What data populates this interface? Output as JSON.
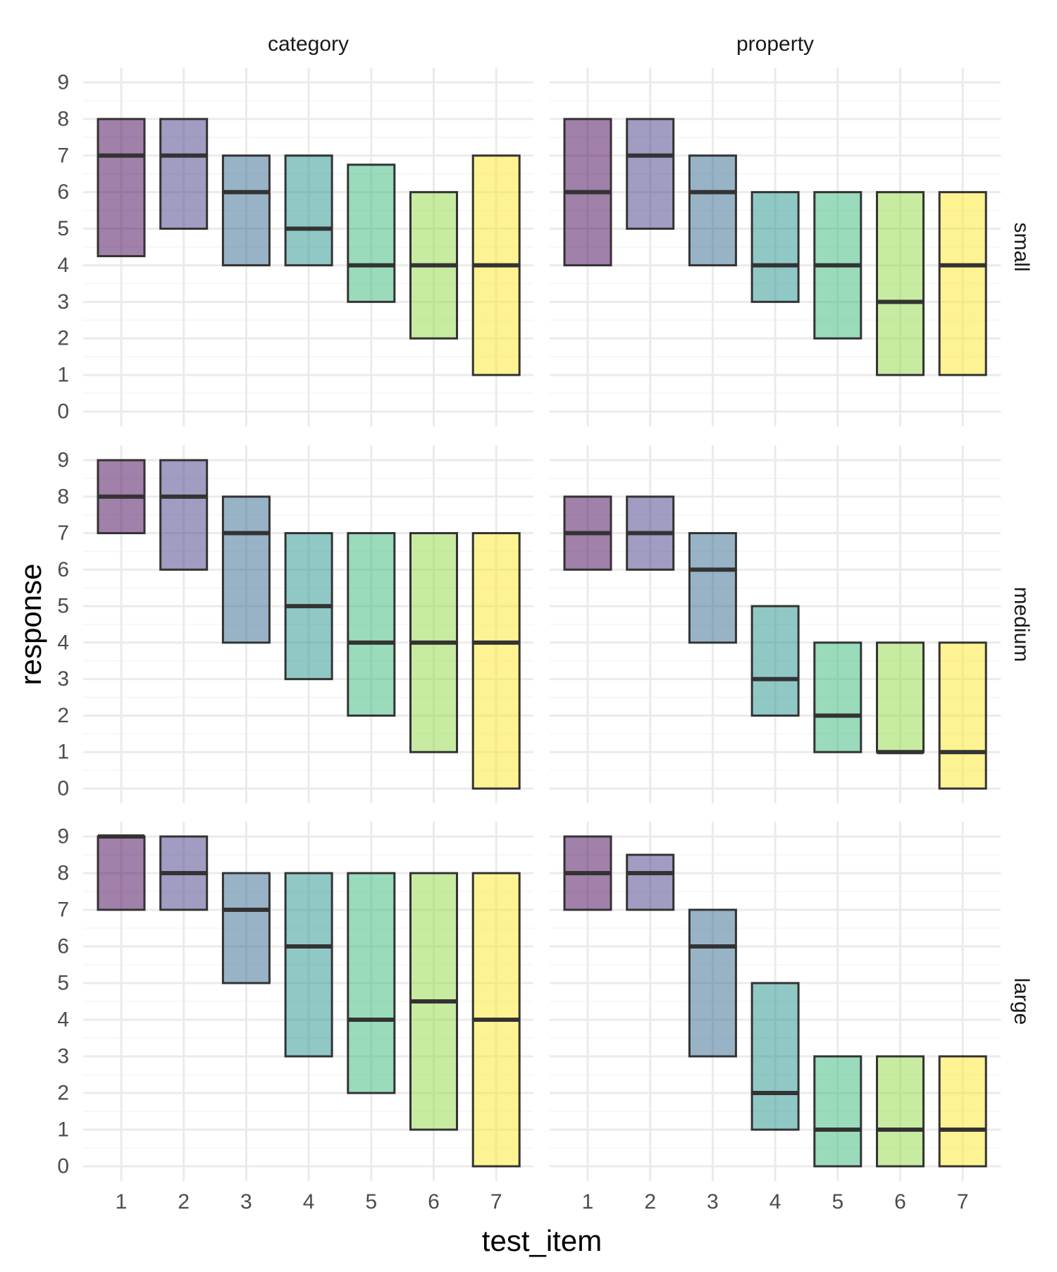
{
  "chart_data": {
    "type": "boxplot",
    "xlabel": "test_item",
    "ylabel": "response",
    "ylim": [
      0,
      9
    ],
    "y_ticks": [
      0,
      1,
      2,
      3,
      4,
      5,
      6,
      7,
      8,
      9
    ],
    "categories": [
      "1",
      "2",
      "3",
      "4",
      "5",
      "6",
      "7"
    ],
    "columns": [
      "category",
      "property"
    ],
    "rows": [
      "small",
      "medium",
      "large"
    ],
    "grid": true,
    "legend": "none",
    "colors": [
      "#440154",
      "#443983",
      "#31688e",
      "#21918c",
      "#35b779",
      "#90d743",
      "#fde725"
    ],
    "fill_opacity": 0.5,
    "panels": [
      {
        "column": "category",
        "row": "small",
        "boxes": [
          [
            4.25,
            7,
            8
          ],
          [
            5,
            7,
            8
          ],
          [
            4,
            6,
            7
          ],
          [
            4,
            5,
            7
          ],
          [
            3,
            4,
            6.75
          ],
          [
            2,
            4,
            6
          ],
          [
            1,
            4,
            7
          ]
        ]
      },
      {
        "column": "property",
        "row": "small",
        "boxes": [
          [
            4,
            6,
            8
          ],
          [
            5,
            7,
            8
          ],
          [
            4,
            6,
            7
          ],
          [
            3,
            4,
            6
          ],
          [
            2,
            4,
            6
          ],
          [
            1,
            3,
            6
          ],
          [
            1,
            4,
            6
          ]
        ]
      },
      {
        "column": "category",
        "row": "medium",
        "boxes": [
          [
            7,
            8,
            9
          ],
          [
            6,
            8,
            9
          ],
          [
            4,
            7,
            8
          ],
          [
            3,
            5,
            7
          ],
          [
            2,
            4,
            7
          ],
          [
            1,
            4,
            7
          ],
          [
            0,
            4,
            7
          ]
        ]
      },
      {
        "column": "property",
        "row": "medium",
        "boxes": [
          [
            6,
            7,
            8
          ],
          [
            6,
            7,
            8
          ],
          [
            4,
            6,
            7
          ],
          [
            2,
            3,
            5
          ],
          [
            1,
            2,
            4
          ],
          [
            1,
            1,
            4
          ],
          [
            0,
            1,
            4
          ]
        ]
      },
      {
        "column": "category",
        "row": "large",
        "boxes": [
          [
            7,
            9,
            9
          ],
          [
            7,
            8,
            9
          ],
          [
            5,
            7,
            8
          ],
          [
            3,
            6,
            8
          ],
          [
            2,
            4,
            8
          ],
          [
            1,
            4.5,
            8
          ],
          [
            0,
            4,
            8
          ]
        ]
      },
      {
        "column": "property",
        "row": "large",
        "boxes": [
          [
            7,
            8,
            9
          ],
          [
            7,
            8,
            8.5
          ],
          [
            3,
            6,
            7
          ],
          [
            1,
            2,
            5
          ],
          [
            0,
            1,
            3
          ],
          [
            0,
            1,
            3
          ],
          [
            0,
            1,
            3
          ]
        ]
      }
    ]
  }
}
